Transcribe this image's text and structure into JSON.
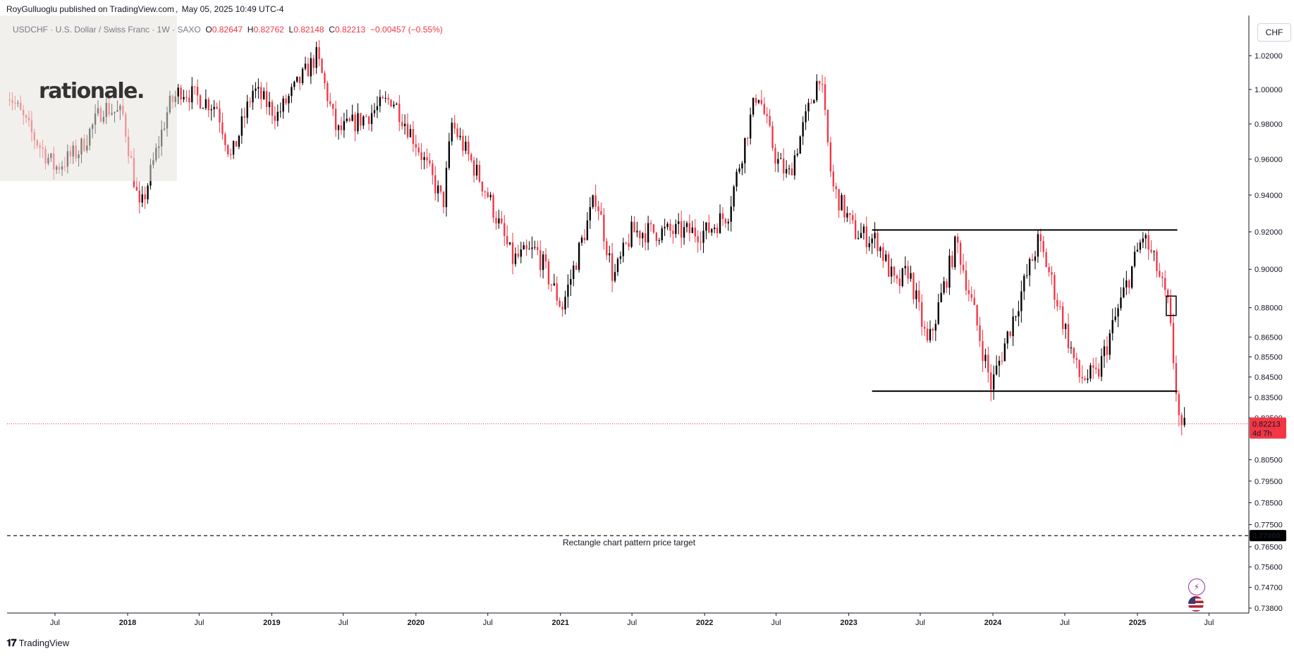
{
  "header": {
    "publisher": "RoyGulluoglu published on TradingView.com",
    "date": "May 05, 2025 10:49 UTC-4"
  },
  "legend": {
    "symbol": "USDCHF · U.S. Dollar / Swiss Franc · 1W · SAXO",
    "open_label": "O",
    "open": "0.82647",
    "high_label": "H",
    "high": "0.82762",
    "low_label": "L",
    "low": "0.82148",
    "close_label": "C",
    "close": "0.82213",
    "change": "−0.00457 (−0.55%)"
  },
  "watermark": {
    "text": "rationale."
  },
  "currency_button": "CHF",
  "footer": {
    "brand": "TradingView"
  },
  "icons": {
    "lightning": "lightning-icon",
    "flag": "us-flag-icon",
    "logo": "tradingview-logo-icon"
  },
  "colors": {
    "up": "#000000",
    "down": "#f23645",
    "price_tag": "#f23645",
    "target_tag": "#000000"
  },
  "chart_data": {
    "type": "candlestick",
    "symbol": "USDCHF",
    "timeframe": "1W",
    "y_axis": {
      "ticks": [
        1.02,
        1.0,
        0.98,
        0.96,
        0.94,
        0.92,
        0.9,
        0.88,
        0.865,
        0.855,
        0.845,
        0.835,
        0.825,
        0.805,
        0.795,
        0.785,
        0.775,
        0.765,
        0.756,
        0.747,
        0.738
      ],
      "tick_labels": [
        "1.02000",
        "1.00000",
        "0.98000",
        "0.96000",
        "0.94000",
        "0.92000",
        "0.90000",
        "0.88000",
        "0.86500",
        "0.85500",
        "0.84500",
        "0.83500",
        "0.82500",
        "0.80500",
        "0.79500",
        "0.78500",
        "0.77500",
        "0.76500",
        "0.75600",
        "0.74700",
        "0.73800"
      ],
      "scale": "log"
    },
    "x_axis": {
      "labels": [
        "Jul",
        "2018",
        "Jul",
        "2019",
        "Jul",
        "2020",
        "Jul",
        "2021",
        "Jul",
        "2022",
        "Jul",
        "2023",
        "Jul",
        "2024",
        "Jul",
        "2025",
        "Jul"
      ],
      "dates": [
        "2017-07-01",
        "2018-01-01",
        "2018-07-01",
        "2019-01-01",
        "2019-07-01",
        "2020-01-01",
        "2020-07-01",
        "2021-01-01",
        "2021-07-01",
        "2022-01-01",
        "2022-07-01",
        "2023-01-01",
        "2023-07-01",
        "2024-01-01",
        "2024-07-01",
        "2025-01-01",
        "2025-07-01"
      ]
    },
    "price_path": [
      [
        "2017-03-01",
        1.0
      ],
      [
        "2017-05-01",
        0.975
      ],
      [
        "2017-07-01",
        0.955
      ],
      [
        "2017-09-01",
        0.965
      ],
      [
        "2017-11-01",
        0.99
      ],
      [
        "2017-12-20",
        0.985
      ],
      [
        "2018-02-01",
        0.93
      ],
      [
        "2018-04-15",
        0.99
      ],
      [
        "2018-05-15",
        1.0
      ],
      [
        "2018-08-15",
        0.99
      ],
      [
        "2018-09-20",
        0.96
      ],
      [
        "2018-11-15",
        1.0
      ],
      [
        "2019-01-15",
        0.985
      ],
      [
        "2019-04-25",
        1.02
      ],
      [
        "2019-06-15",
        0.975
      ],
      [
        "2019-09-01",
        0.985
      ],
      [
        "2019-11-01",
        0.995
      ],
      [
        "2019-12-31",
        0.97
      ],
      [
        "2020-03-10",
        0.935
      ],
      [
        "2020-04-01",
        0.98
      ],
      [
        "2020-07-01",
        0.94
      ],
      [
        "2020-09-01",
        0.905
      ],
      [
        "2020-11-01",
        0.91
      ],
      [
        "2021-01-05",
        0.88
      ],
      [
        "2021-04-01",
        0.94
      ],
      [
        "2021-05-15",
        0.895
      ],
      [
        "2021-07-01",
        0.92
      ],
      [
        "2021-09-01",
        0.92
      ],
      [
        "2021-11-01",
        0.92
      ],
      [
        "2022-01-05",
        0.92
      ],
      [
        "2022-03-01",
        0.93
      ],
      [
        "2022-05-15",
        1.0
      ],
      [
        "2022-07-01",
        0.96
      ],
      [
        "2022-08-01",
        0.95
      ],
      [
        "2022-10-20",
        1.01
      ],
      [
        "2022-11-20",
        0.945
      ],
      [
        "2023-01-15",
        0.92
      ],
      [
        "2023-03-15",
        0.915
      ],
      [
        "2023-05-01",
        0.89
      ],
      [
        "2023-06-01",
        0.9
      ],
      [
        "2023-07-20",
        0.86
      ],
      [
        "2023-10-01",
        0.915
      ],
      [
        "2023-12-28",
        0.84
      ],
      [
        "2024-04-25",
        0.915
      ],
      [
        "2024-05-20",
        0.9
      ],
      [
        "2024-08-05",
        0.845
      ],
      [
        "2024-09-20",
        0.845
      ],
      [
        "2025-01-15",
        0.918
      ],
      [
        "2025-02-20",
        0.9
      ],
      [
        "2025-03-20",
        0.88
      ],
      [
        "2025-04-21",
        0.815
      ],
      [
        "2025-05-05",
        0.82213
      ]
    ],
    "drawings": [
      {
        "type": "horizontal_segment",
        "name": "resistance",
        "price": 0.921,
        "from": "2023-03-01",
        "to": "2025-04-12"
      },
      {
        "type": "horizontal_segment",
        "name": "support",
        "price": 0.838,
        "from": "2023-03-01",
        "to": "2025-04-12"
      },
      {
        "type": "horizontal_line_dashed",
        "name": "target",
        "price": 0.77,
        "label": "Rectangle chart pattern price target"
      },
      {
        "type": "horizontal_line_dotted",
        "name": "last_price",
        "price": 0.82213
      }
    ],
    "price_tag": {
      "value": "0.82213",
      "countdown": "4d 7h"
    },
    "target_tag": {
      "value": "0.77000"
    }
  }
}
